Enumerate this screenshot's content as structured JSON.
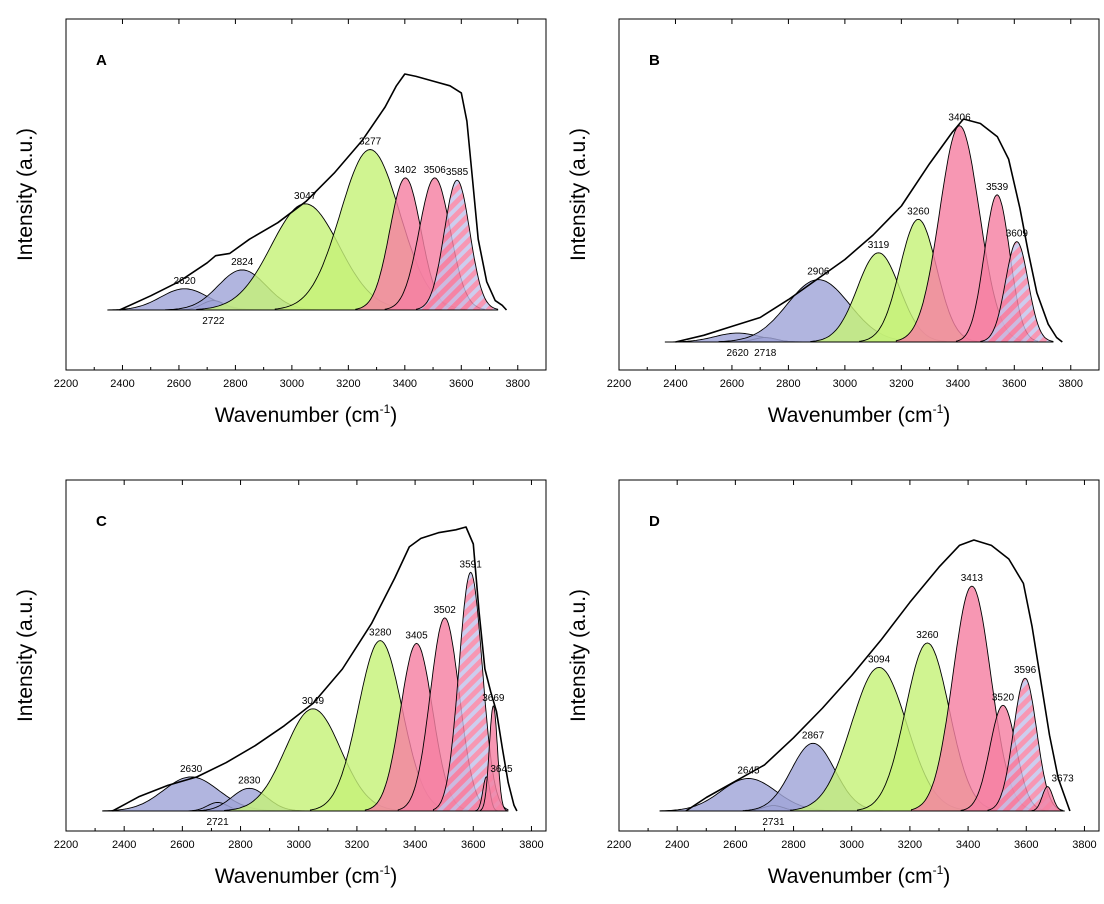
{
  "colors": {
    "blue": "#a0a5d8",
    "green": "#c6f279",
    "pink": "#f580a2",
    "olive": "#b5b03a",
    "hatch": "#c2c2ea",
    "stroke": "#000000"
  },
  "chart_data": [
    {
      "type": "area",
      "panel": "A",
      "xlabel": "Wavenumber (cm",
      "xlabel_sup": "-1",
      "xlabel_end": ")",
      "ylabel": "Intensity (a.u.)",
      "xlim": [
        2200,
        3900
      ],
      "xticks": [
        2200,
        2400,
        2600,
        2800,
        3000,
        3200,
        3400,
        3600,
        3800
      ],
      "envelope": [
        [
          2390,
          0
        ],
        [
          2500,
          0.06
        ],
        [
          2600,
          0.12
        ],
        [
          2700,
          0.2
        ],
        [
          2730,
          0.23
        ],
        [
          2780,
          0.24
        ],
        [
          2850,
          0.3
        ],
        [
          2950,
          0.37
        ],
        [
          3050,
          0.46
        ],
        [
          3150,
          0.58
        ],
        [
          3250,
          0.72
        ],
        [
          3330,
          0.86
        ],
        [
          3370,
          0.95
        ],
        [
          3400,
          1.0
        ],
        [
          3440,
          0.99
        ],
        [
          3500,
          0.97
        ],
        [
          3560,
          0.95
        ],
        [
          3600,
          0.92
        ],
        [
          3620,
          0.8
        ],
        [
          3640,
          0.55
        ],
        [
          3660,
          0.3
        ],
        [
          3690,
          0.12
        ],
        [
          3720,
          0.04
        ],
        [
          3745,
          0.02
        ],
        [
          3760,
          0
        ]
      ],
      "peaks": [
        {
          "center": 2620,
          "label": "2620",
          "height": 0.09,
          "width": 85,
          "color": "blue"
        },
        {
          "center": 2722,
          "label": "2722",
          "height": 0.04,
          "width": 40,
          "color": "blue"
        },
        {
          "center": 2824,
          "label": "2824",
          "height": 0.17,
          "width": 85,
          "color": "blue"
        },
        {
          "center": 3047,
          "label": "3047",
          "height": 0.45,
          "width": 120,
          "color": "green"
        },
        {
          "center": 3277,
          "label": "3277",
          "height": 0.68,
          "width": 105,
          "color": "green"
        },
        {
          "center": 3402,
          "label": "3402",
          "height": 0.56,
          "width": 55,
          "color": "pink"
        },
        {
          "center": 3506,
          "label": "3506",
          "height": 0.56,
          "width": 55,
          "color": "pink"
        },
        {
          "center": 3585,
          "label": "3585",
          "height": 0.55,
          "width": 45,
          "color": "pink",
          "hatched": true
        }
      ]
    },
    {
      "type": "area",
      "panel": "B",
      "xlabel": "Wavenumber (cm",
      "xlabel_sup": "-1",
      "xlabel_end": ")",
      "ylabel": "Intensity (a.u.)",
      "xlim": [
        2200,
        3900
      ],
      "xticks": [
        2200,
        2400,
        2600,
        2800,
        3000,
        3200,
        3400,
        3600,
        3800
      ],
      "envelope": [
        [
          2400,
          0
        ],
        [
          2500,
          0.03
        ],
        [
          2600,
          0.07
        ],
        [
          2700,
          0.11
        ],
        [
          2800,
          0.19
        ],
        [
          2900,
          0.28
        ],
        [
          3000,
          0.37
        ],
        [
          3100,
          0.48
        ],
        [
          3200,
          0.61
        ],
        [
          3300,
          0.8
        ],
        [
          3380,
          0.94
        ],
        [
          3420,
          1.0
        ],
        [
          3480,
          0.98
        ],
        [
          3540,
          0.92
        ],
        [
          3580,
          0.82
        ],
        [
          3620,
          0.6
        ],
        [
          3650,
          0.4
        ],
        [
          3680,
          0.22
        ],
        [
          3720,
          0.08
        ],
        [
          3750,
          0.02
        ],
        [
          3770,
          0
        ]
      ],
      "peaks": [
        {
          "center": 2620,
          "label": "2620",
          "height": 0.04,
          "width": 80,
          "color": "blue"
        },
        {
          "center": 2718,
          "label": "2718",
          "height": 0.02,
          "width": 40,
          "color": "blue"
        },
        {
          "center": 2906,
          "label": "2906",
          "height": 0.28,
          "width": 110,
          "color": "blue"
        },
        {
          "center": 3119,
          "label": "3119",
          "height": 0.4,
          "width": 75,
          "color": "green"
        },
        {
          "center": 3260,
          "label": "3260",
          "height": 0.55,
          "width": 65,
          "color": "green"
        },
        {
          "center": 3406,
          "label": "3406",
          "height": 0.97,
          "width": 70,
          "color": "pink"
        },
        {
          "center": 3539,
          "label": "3539",
          "height": 0.66,
          "width": 45,
          "color": "pink"
        },
        {
          "center": 3609,
          "label": "3609",
          "height": 0.45,
          "width": 40,
          "color": "pink",
          "hatched": true
        }
      ]
    },
    {
      "type": "area",
      "panel": "C",
      "xlabel": "Wavenumber (cm",
      "xlabel_sup": "-1",
      "xlabel_end": ")",
      "ylabel": "Intensity (a.u.)",
      "xlim": [
        2200,
        3850
      ],
      "xticks": [
        2200,
        2400,
        2600,
        2800,
        3000,
        3200,
        3400,
        3600,
        3800
      ],
      "envelope": [
        [
          2360,
          0
        ],
        [
          2450,
          0.05
        ],
        [
          2550,
          0.09
        ],
        [
          2650,
          0.12
        ],
        [
          2750,
          0.17
        ],
        [
          2850,
          0.23
        ],
        [
          2950,
          0.3
        ],
        [
          3050,
          0.38
        ],
        [
          3150,
          0.5
        ],
        [
          3250,
          0.66
        ],
        [
          3330,
          0.82
        ],
        [
          3380,
          0.93
        ],
        [
          3420,
          0.96
        ],
        [
          3480,
          0.98
        ],
        [
          3540,
          0.99
        ],
        [
          3575,
          1.0
        ],
        [
          3600,
          0.94
        ],
        [
          3620,
          0.7
        ],
        [
          3640,
          0.5
        ],
        [
          3660,
          0.42
        ],
        [
          3680,
          0.35
        ],
        [
          3700,
          0.22
        ],
        [
          3720,
          0.1
        ],
        [
          3740,
          0.02
        ],
        [
          3750,
          0
        ]
      ],
      "peaks": [
        {
          "center": 2630,
          "label": "2630",
          "height": 0.12,
          "width": 95,
          "color": "blue"
        },
        {
          "center": 2721,
          "label": "2721",
          "height": 0.03,
          "width": 35,
          "color": "blue"
        },
        {
          "center": 2830,
          "label": "2830",
          "height": 0.08,
          "width": 60,
          "color": "blue"
        },
        {
          "center": 3049,
          "label": "3049",
          "height": 0.36,
          "width": 95,
          "color": "green"
        },
        {
          "center": 3280,
          "label": "3280",
          "height": 0.6,
          "width": 75,
          "color": "green"
        },
        {
          "center": 3405,
          "label": "3405",
          "height": 0.59,
          "width": 55,
          "color": "pink"
        },
        {
          "center": 3502,
          "label": "3502",
          "height": 0.68,
          "width": 50,
          "color": "pink"
        },
        {
          "center": 3591,
          "label": "3591",
          "height": 0.84,
          "width": 40,
          "color": "pink",
          "hatched": true
        },
        {
          "center": 3645,
          "label": "3645",
          "height": 0.12,
          "width": 12,
          "color": "pink"
        },
        {
          "center": 3669,
          "label": "3669",
          "height": 0.37,
          "width": 14,
          "color": "pink"
        }
      ]
    },
    {
      "type": "area",
      "panel": "D",
      "xlabel": "Wavenumber (cm",
      "xlabel_sup": "-1",
      "xlabel_end": ")",
      "ylabel": "Intensity (a.u.)",
      "xlim": [
        2200,
        3850
      ],
      "xticks": [
        2200,
        2400,
        2600,
        2800,
        3000,
        3200,
        3400,
        3600,
        3800
      ],
      "envelope": [
        [
          2430,
          0
        ],
        [
          2500,
          0.05
        ],
        [
          2600,
          0.11
        ],
        [
          2700,
          0.17
        ],
        [
          2800,
          0.27
        ],
        [
          2900,
          0.38
        ],
        [
          3000,
          0.5
        ],
        [
          3100,
          0.63
        ],
        [
          3200,
          0.77
        ],
        [
          3300,
          0.9
        ],
        [
          3370,
          0.98
        ],
        [
          3420,
          1.0
        ],
        [
          3480,
          0.98
        ],
        [
          3540,
          0.93
        ],
        [
          3590,
          0.84
        ],
        [
          3620,
          0.68
        ],
        [
          3650,
          0.48
        ],
        [
          3680,
          0.28
        ],
        [
          3710,
          0.12
        ],
        [
          3740,
          0.03
        ],
        [
          3750,
          0
        ]
      ],
      "peaks": [
        {
          "center": 2645,
          "label": "2645",
          "height": 0.12,
          "width": 95,
          "color": "blue"
        },
        {
          "center": 2731,
          "label": "2731",
          "height": 0.02,
          "width": 35,
          "color": "blue"
        },
        {
          "center": 2867,
          "label": "2867",
          "height": 0.25,
          "width": 75,
          "color": "blue"
        },
        {
          "center": 3094,
          "label": "3094",
          "height": 0.53,
          "width": 95,
          "color": "green"
        },
        {
          "center": 3260,
          "label": "3260",
          "height": 0.62,
          "width": 75,
          "color": "green"
        },
        {
          "center": 3413,
          "label": "3413",
          "height": 0.83,
          "width": 65,
          "color": "pink"
        },
        {
          "center": 3520,
          "label": "3520",
          "height": 0.39,
          "width": 45,
          "color": "pink"
        },
        {
          "center": 3596,
          "label": "3596",
          "height": 0.49,
          "width": 40,
          "color": "pink",
          "hatched": true
        },
        {
          "center": 3673,
          "label": "3673",
          "height": 0.09,
          "width": 18,
          "color": "pink"
        }
      ]
    }
  ]
}
